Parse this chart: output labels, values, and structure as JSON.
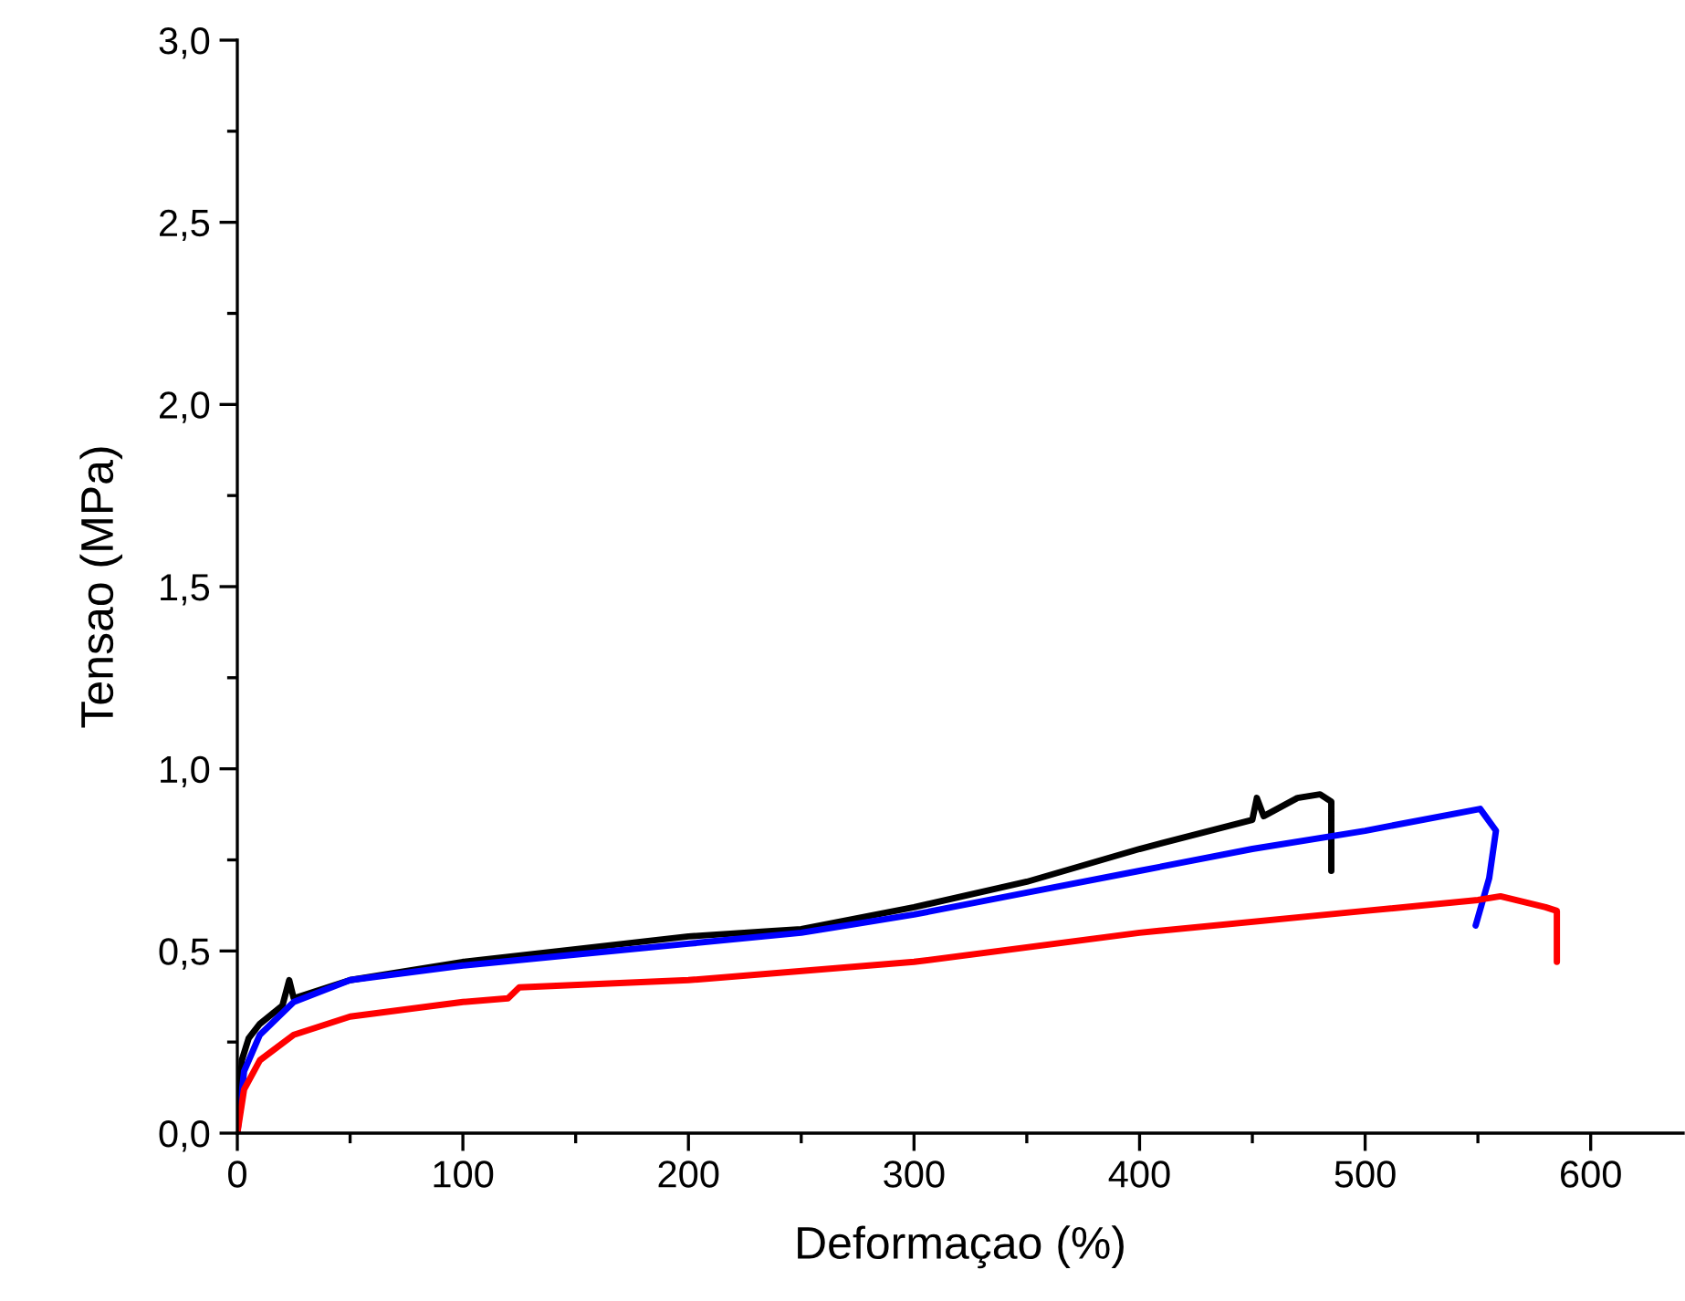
{
  "chart_data": {
    "type": "line",
    "xlabel": "Deformaçao (%)",
    "ylabel": "Tensao (MPa)",
    "xlim": [
      0,
      641
    ],
    "ylim": [
      0,
      3.0
    ],
    "xticks": [
      0,
      {
        "value": 50,
        "label": null
      },
      100,
      {
        "value": 150,
        "label": null
      },
      200,
      {
        "value": 250,
        "label": null
      },
      300,
      {
        "value": 350,
        "label": null
      },
      400,
      {
        "value": 450,
        "label": null
      },
      500,
      {
        "value": 550,
        "label": null
      },
      600
    ],
    "yticks": [
      {
        "value": 0,
        "label": "0,0"
      },
      {
        "value": 0.25,
        "label": null
      },
      {
        "value": 0.5,
        "label": "0,5"
      },
      {
        "value": 0.75,
        "label": null
      },
      {
        "value": 1.0,
        "label": "1,0"
      },
      {
        "value": 1.25,
        "label": null
      },
      {
        "value": 1.5,
        "label": "1,5"
      },
      {
        "value": 1.75,
        "label": null
      },
      {
        "value": 2.0,
        "label": "2,0"
      },
      {
        "value": 2.25,
        "label": null
      },
      {
        "value": 2.5,
        "label": "2,5"
      },
      {
        "value": 2.75,
        "label": null
      },
      {
        "value": 3.0,
        "label": "3,0"
      }
    ],
    "grid": false,
    "legend": false,
    "marker": "none",
    "line_style": "solid",
    "series": [
      {
        "color": "#000000",
        "x": [
          0,
          2,
          5,
          10,
          20,
          23,
          25,
          50,
          100,
          150,
          200,
          250,
          300,
          350,
          400,
          450,
          452,
          455,
          470,
          480,
          485,
          485
        ],
        "values": [
          0,
          0.2,
          0.26,
          0.3,
          0.35,
          0.42,
          0.37,
          0.42,
          0.47,
          0.505,
          0.54,
          0.56,
          0.62,
          0.69,
          0.78,
          0.86,
          0.92,
          0.87,
          0.92,
          0.93,
          0.91,
          0.72
        ]
      },
      {
        "color": "#0000ff",
        "x": [
          0,
          3,
          10,
          25,
          50,
          100,
          150,
          200,
          250,
          300,
          350,
          400,
          450,
          500,
          551,
          558,
          555,
          549
        ],
        "values": [
          0,
          0.17,
          0.27,
          0.36,
          0.42,
          0.46,
          0.49,
          0.52,
          0.55,
          0.6,
          0.66,
          0.72,
          0.78,
          0.83,
          0.89,
          0.83,
          0.7,
          0.57
        ]
      },
      {
        "color": "#ff0000",
        "x": [
          0,
          3,
          10,
          25,
          50,
          100,
          120,
          125,
          200,
          300,
          400,
          500,
          550,
          560,
          580,
          585,
          585
        ],
        "values": [
          0,
          0.12,
          0.2,
          0.27,
          0.32,
          0.36,
          0.37,
          0.4,
          0.42,
          0.47,
          0.55,
          0.61,
          0.64,
          0.65,
          0.62,
          0.61,
          0.47
        ]
      }
    ]
  }
}
